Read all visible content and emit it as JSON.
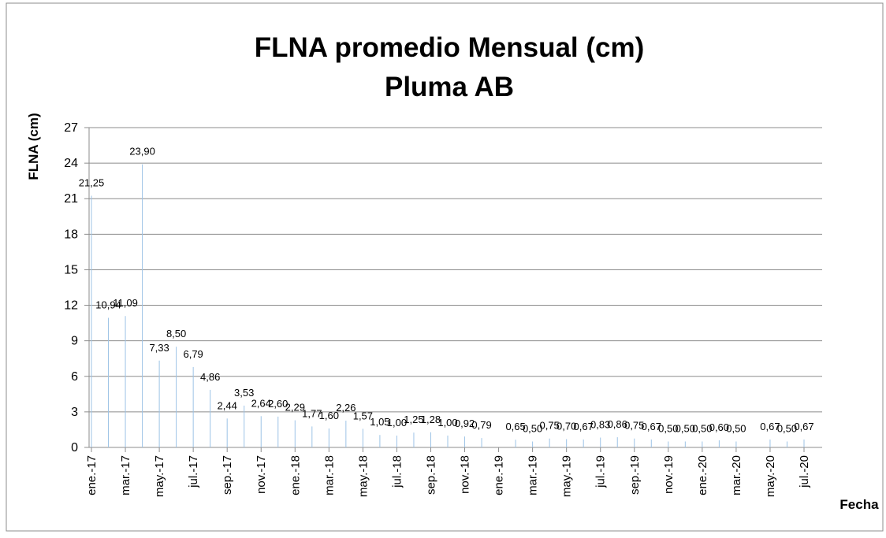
{
  "chart_data": {
    "type": "bar",
    "title": "FLNA promedio Mensual (cm)",
    "subtitle": "Pluma AB",
    "y_label": "FLNA (cm)",
    "x_label": "Fecha",
    "categories": [
      "ene.-17",
      null,
      "mar.-17",
      null,
      "may.-17",
      null,
      "jul.-17",
      null,
      "sep.-17",
      null,
      "nov.-17",
      null,
      "ene.-18",
      null,
      "mar.-18",
      null,
      "may.-18",
      null,
      "jul.-18",
      null,
      "sep.-18",
      null,
      "nov.-18",
      null,
      "ene.-19",
      null,
      "mar.-19",
      null,
      "may.-19",
      null,
      "jul.-19",
      null,
      "sep.-19",
      null,
      "nov.-19",
      null,
      "ene.-20",
      null,
      "mar.-20",
      null,
      "may.-20",
      null,
      "jul.-20"
    ],
    "values": [
      21.25,
      10.94,
      11.09,
      23.9,
      7.33,
      8.5,
      6.79,
      4.86,
      2.44,
      3.53,
      2.64,
      2.6,
      2.29,
      1.77,
      1.6,
      2.26,
      1.57,
      1.05,
      1.0,
      1.25,
      1.28,
      1.0,
      0.92,
      0.79,
      null,
      0.65,
      0.5,
      0.75,
      0.7,
      0.67,
      0.83,
      0.86,
      0.75,
      0.67,
      0.5,
      0.5,
      0.5,
      0.6,
      0.5,
      null,
      0.67,
      0.5,
      0.67
    ],
    "value_labels": [
      "21,25",
      "10,94",
      "11,09",
      "23,90",
      "7,33",
      "8,50",
      "6,79",
      "4,86",
      "2,44",
      "3,53",
      "2,64",
      "2,60",
      "2,29",
      "1,77",
      "1,60",
      "2,26",
      "1,57",
      "1,05",
      "1,00",
      "1,25",
      "1,28",
      "1,00",
      "0,92",
      "0,79",
      null,
      "0,65",
      "0,50",
      "0,75",
      "0,70",
      "0,67",
      "0,83",
      "0,86",
      "0,75",
      "0,67",
      "0,50",
      "0,50",
      "0,50",
      "0,60",
      "0,50",
      null,
      "0,67",
      "0,50",
      "0,67"
    ],
    "color": "#9dc3e6",
    "ylim": [
      0,
      27
    ],
    "yticks": [
      0,
      3,
      6,
      9,
      12,
      15,
      18,
      21,
      24,
      27
    ],
    "grid": true
  }
}
